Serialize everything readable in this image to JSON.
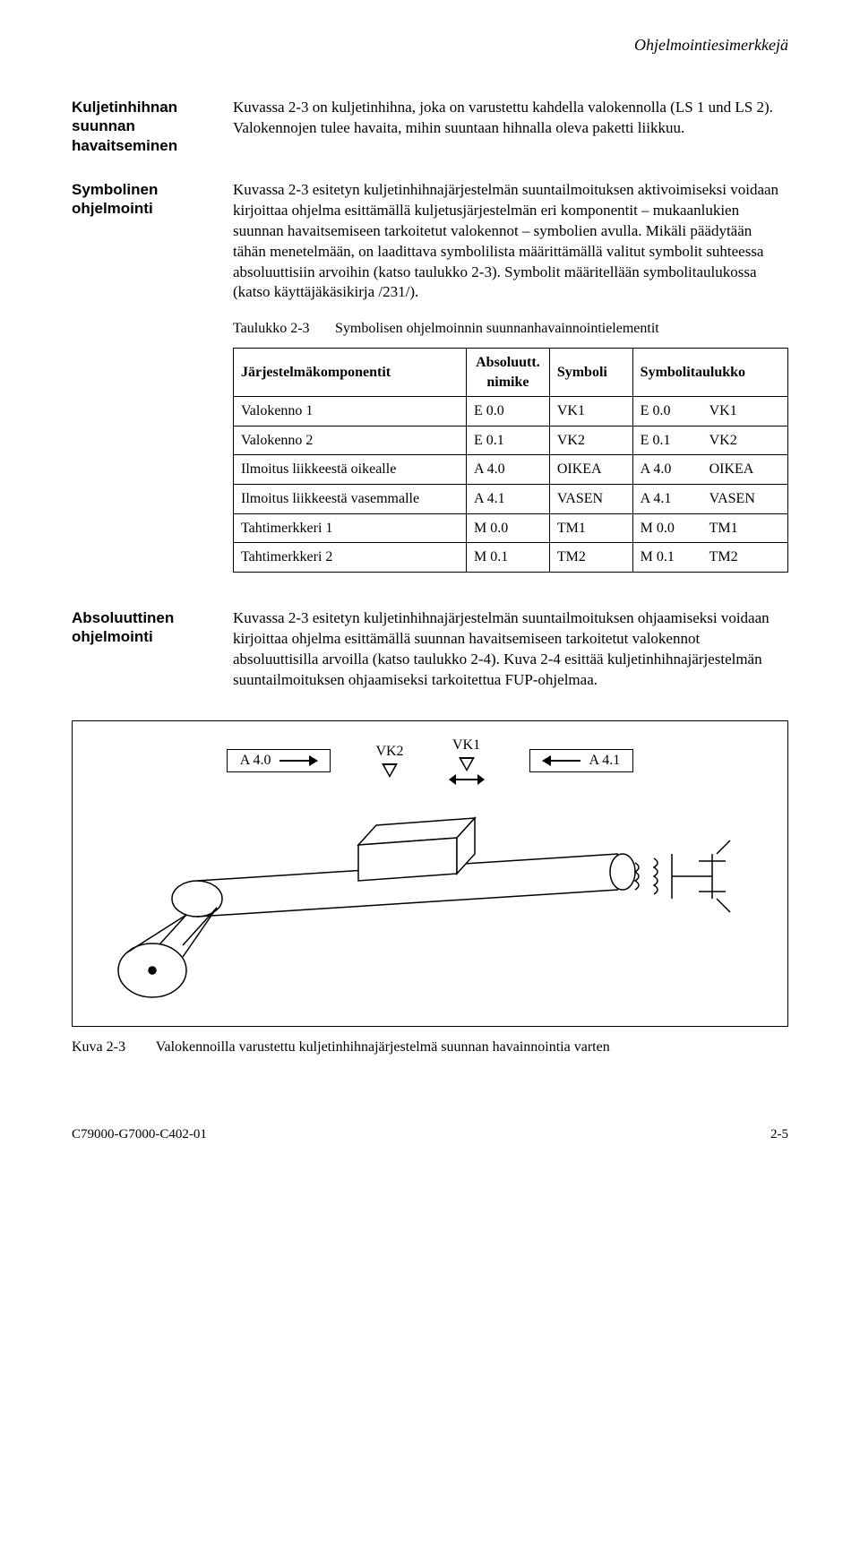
{
  "runningHead": "Ohjelmointiesimerkkejä",
  "section1": {
    "sideTitle": "Kuljetinhihnan suunnan havaitseminen",
    "text": "Kuvassa 2-3 on kuljetinhihna, joka on varustettu kahdella valokennolla (LS 1 und LS 2). Valokennojen tulee havaita, mihin suuntaan hihnalla oleva paketti liikkuu."
  },
  "section2": {
    "sideTitle": "Symbolinen ohjelmointi",
    "text": "Kuvassa 2-3 esitetyn kuljetinhihnajärjestelmän suuntailmoituksen aktivoimiseksi voidaan kirjoittaa ohjelma esittämällä kuljetusjärjestelmän eri komponentit – mukaanlukien suunnan havaitsemiseen tarkoitetut valokennot – symbolien avulla. Mikäli päädytään tähän menetelmään, on laadittava symbolilista määrittämällä valitut symbolit suhteessa absoluuttisiin arvoihin (katso taulukko 2-3). Symbolit määritellään symbolitaulukossa (katso käyttäjäkäsikirja /231/)."
  },
  "table": {
    "captionLabel": "Taulukko 2-3",
    "captionText": "Symbolisen ohjelmoinnin suunnanhavainnointielementit",
    "headers": {
      "c1": "Järjestelmäkomponentit",
      "c2": "Absoluutt. nimike",
      "c3": "Symboli",
      "c4": "Symbolitaulukko"
    },
    "rows": [
      {
        "c1": "Valokenno 1",
        "c2": "E 0.0",
        "c3": "VK1",
        "c4a": "E 0.0",
        "c4b": "VK1"
      },
      {
        "c1": "Valokenno 2",
        "c2": "E 0.1",
        "c3": "VK2",
        "c4a": "E 0.1",
        "c4b": "VK2"
      },
      {
        "c1": "Ilmoitus liikkeestä oikealle",
        "c2": "A 4.0",
        "c3": "OIKEA",
        "c4a": "A 4.0",
        "c4b": "OIKEA"
      },
      {
        "c1": "Ilmoitus liikkeestä vasemmalle",
        "c2": "A 4.1",
        "c3": "VASEN",
        "c4a": "A 4.1",
        "c4b": "VASEN"
      },
      {
        "c1": "Tahtimerkkeri 1",
        "c2": "M 0.0",
        "c3": "TM1",
        "c4a": "M 0.0",
        "c4b": "TM1"
      },
      {
        "c1": "Tahtimerkkeri 2",
        "c2": "M 0.1",
        "c3": "TM2",
        "c4a": "M 0.1",
        "c4b": "TM2"
      }
    ]
  },
  "section3": {
    "sideTitle": "Absoluuttinen ohjelmointi",
    "text": "Kuvassa 2-3 esitetyn kuljetinhihnajärjestelmän suuntailmoituksen ohjaamiseksi voidaan kirjoittaa ohjelma esittämällä suunnan havaitsemiseen tarkoitetut valokennot absoluuttisilla arvoilla (katso taulukko 2-4). Kuva 2-4 esittää kuljetinhihnajärjestelmän suuntailmoituksen ohjaamiseksi tarkoitettua FUP-ohjelmaa."
  },
  "figure": {
    "left": "A 4.0",
    "s1": "VK2",
    "s2": "VK1",
    "right": "A 4.1",
    "captionLabel": "Kuva 2-3",
    "captionText": "Valokennoilla varustettu kuljetinhihnajärjestelmä suunnan havainnointia varten"
  },
  "footer": {
    "left": "C79000-G7000-C402-01",
    "right": "2-5"
  }
}
